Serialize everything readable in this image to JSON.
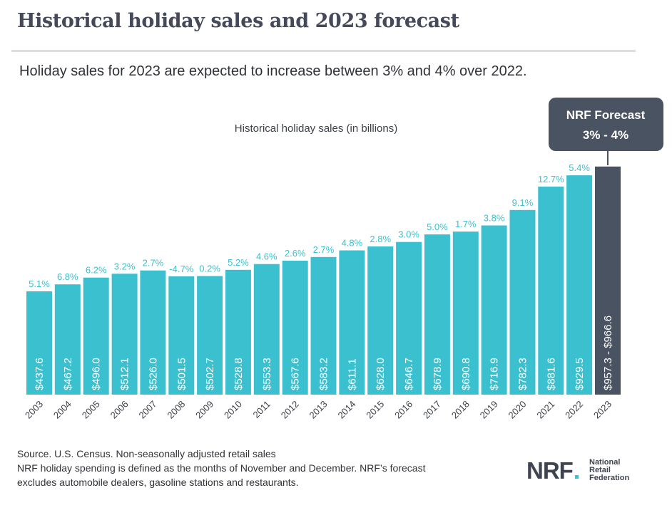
{
  "header": {
    "title": "Historical holiday sales and 2023 forecast",
    "subtitle": "Holiday sales for 2023 are expected to increase between 3% and 4% over 2022."
  },
  "chart_data": {
    "type": "bar",
    "title": "Historical holiday sales (in billions)",
    "xlabel": "",
    "ylabel": "",
    "ylim": [
      0,
      1000
    ],
    "categories": [
      "2003",
      "2004",
      "2005",
      "2006",
      "2007",
      "2008",
      "2009",
      "2010",
      "2011",
      "2012",
      "2013",
      "2014",
      "2015",
      "2016",
      "2017",
      "2018",
      "2019",
      "2020",
      "2021",
      "2022",
      "2023"
    ],
    "values": [
      437.6,
      467.2,
      496.0,
      512.1,
      526.0,
      501.5,
      502.7,
      528.8,
      553.3,
      567.6,
      583.2,
      611.1,
      628.0,
      646.7,
      678.9,
      690.8,
      716.9,
      782.3,
      881.6,
      929.5,
      966.6
    ],
    "value_labels": [
      "$437.6",
      "$467.2",
      "$496.0",
      "$512.1",
      "$526.0",
      "$501.5",
      "$502.7",
      "$528.8",
      "$553.3",
      "$567.6",
      "$583.2",
      "$611.1",
      "$628.0",
      "$646.7",
      "$678.9",
      "$690.8",
      "$716.9",
      "$782.3",
      "$881.6",
      "$929.5",
      "$957.3 - $966.6"
    ],
    "growth_labels": [
      "5.1%",
      "6.8%",
      "6.2%",
      "3.2%",
      "2.7%",
      "-4.7%",
      "0.2%",
      "5.2%",
      "4.6%",
      "2.6%",
      "2.7%",
      "4.8%",
      "2.8%",
      "3.0%",
      "5.0%",
      "1.7%",
      "3.8%",
      "9.1%",
      "12.7%",
      "5.4%",
      ""
    ],
    "forecast_range": [
      957.3,
      966.6
    ],
    "forecast_callout": {
      "line1": "NRF Forecast",
      "line2": "3% - 4%"
    },
    "colors": {
      "historical": "#3bc0d0",
      "forecast": "#4a5361",
      "growth_text": "#3bc0d0",
      "value_text": "#ffffff",
      "callout_bg": "#4a5361"
    }
  },
  "footer": {
    "source": "Source. U.S. Census. Non-seasonally adjusted retail sales",
    "note_line1": "NRF holiday spending is defined as the months of November and December. NRF’s forecast",
    "note_line2": "excludes automobile dealers, gasoline stations and restaurants."
  },
  "logo": {
    "mark": "NRF",
    "line1": "National",
    "line2": "Retail",
    "line3": "Federation"
  }
}
